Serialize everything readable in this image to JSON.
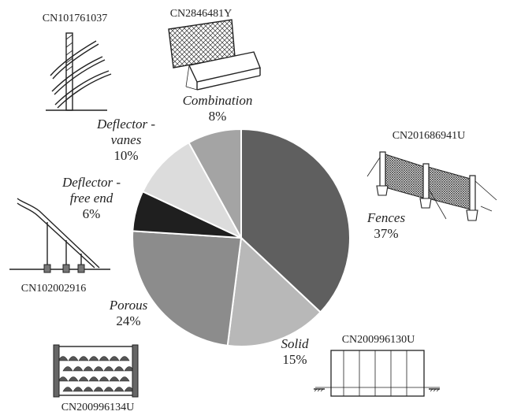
{
  "chart_data": {
    "type": "pie",
    "title": "",
    "slices": [
      {
        "label": "Fences",
        "value": 37,
        "value_label": "37%",
        "color": "#5f5f5f"
      },
      {
        "label": "Solid",
        "value": 15,
        "value_label": "15%",
        "color": "#b8b8b8"
      },
      {
        "label": "Porous",
        "value": 24,
        "value_label": "24%",
        "color": "#8c8c8c"
      },
      {
        "label": "Deflector -\nfree end",
        "value": 6,
        "value_label": "6%",
        "color": "#1f1f1f"
      },
      {
        "label": "Deflector -\nvanes",
        "value": 10,
        "value_label": "10%",
        "color": "#dcdcdc"
      },
      {
        "label": "Combination",
        "value": 8,
        "value_label": "8%",
        "color": "#a4a4a4"
      }
    ]
  },
  "illustrations": [
    {
      "patent": "CN101761037",
      "depicts": "vertical post with curved deflector vanes"
    },
    {
      "patent": "CN2846481Y",
      "depicts": "mesh fence on trapezoidal base"
    },
    {
      "patent": "CN201686941U",
      "depicts": "mesh fence panels with posts and guy wires"
    },
    {
      "patent": "CN102002916",
      "depicts": "inclined deflector with free end on supports"
    },
    {
      "patent": "CN200996130U",
      "depicts": "solid panel wall"
    },
    {
      "patent": "CN200996134U",
      "depicts": "porous block structure"
    }
  ]
}
